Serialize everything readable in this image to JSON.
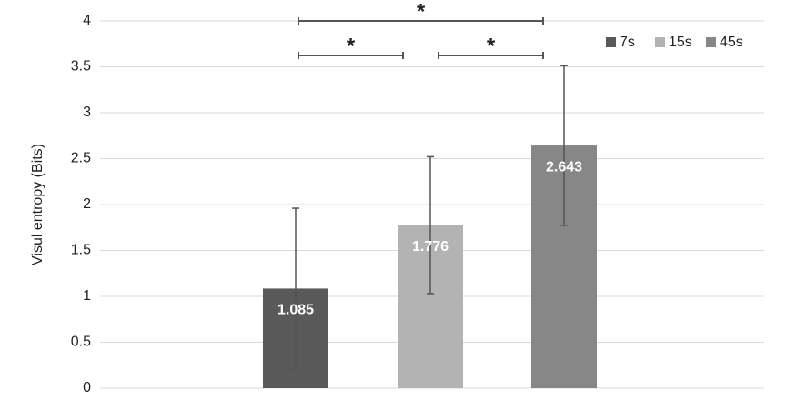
{
  "chart_data": {
    "type": "bar",
    "y_label": "Visul entropy (Bits)",
    "categories": [
      null
    ],
    "series": [
      {
        "name": "7s",
        "color": "#595959",
        "values": [
          1.085
        ],
        "errors": [
          0.875
        ]
      },
      {
        "name": "15s",
        "color": "#b3b3b3",
        "values": [
          1.776
        ],
        "errors": [
          0.745
        ]
      },
      {
        "name": "45s",
        "color": "#878787",
        "values": [
          2.643
        ],
        "errors": [
          0.87
        ]
      }
    ],
    "annotations": [
      "*",
      "*",
      "*"
    ],
    "ylim": [
      0,
      4
    ],
    "yticks": [
      0,
      0.5,
      1,
      1.5,
      2,
      2.5,
      3,
      3.5,
      4
    ],
    "grid": true,
    "legend": "top-right"
  }
}
